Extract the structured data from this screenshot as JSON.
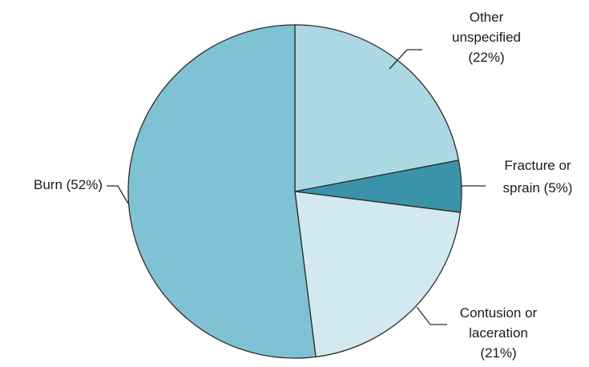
{
  "chart_data": {
    "type": "pie",
    "start_angle": "12 o'clock",
    "direction": "clockwise",
    "slices": [
      {
        "label_lines": [
          "Other",
          "unspecified",
          "(22%)"
        ],
        "value": 22,
        "color": "#acd8e3"
      },
      {
        "label_lines": [
          "Fracture or",
          "sprain (5%)"
        ],
        "value": 5,
        "color": "#3a93a8"
      },
      {
        "label_lines": [
          "Contusion or",
          "laceration",
          "(21%)"
        ],
        "value": 21,
        "color": "#d3e9f0"
      },
      {
        "label_lines": [
          "Burn (52%)"
        ],
        "value": 52,
        "color": "#7fc2d3"
      }
    ]
  }
}
